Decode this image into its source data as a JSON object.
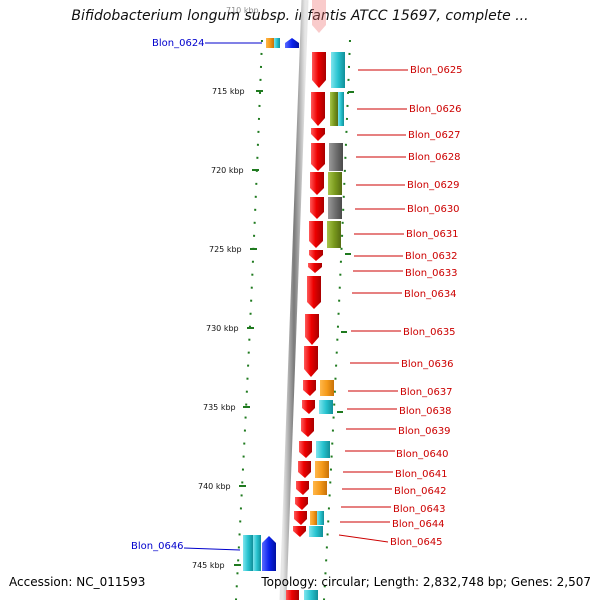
{
  "title": "Bifidobacterium longum subsp. infantis ATCC 15697, complete ...",
  "top_cut_label": "710 kbp",
  "footer": {
    "accession": "Accession: NC_011593",
    "summary": "Topology: circular; Length: 2,832,748 bp; Genes: 2,507"
  },
  "colors": {
    "forward_gene": "#ee0000",
    "orange_gene": "#f59a1a",
    "cyan_gene": "#27c3cf",
    "olive_gene": "#7a9a1e",
    "gray_gene": "#707070",
    "blue_gene": "#0a22ee",
    "label_red": "#cc0000",
    "label_blue": "#0000cc",
    "tick_green": "#1f7a1f"
  },
  "ticks": [
    {
      "label": "715 kbp"
    },
    {
      "label": "720 kbp"
    },
    {
      "label": "725 kbp"
    },
    {
      "label": "730 kbp"
    },
    {
      "label": "735 kbp"
    },
    {
      "label": "740 kbp"
    },
    {
      "label": "745 kbp"
    }
  ],
  "gene_labels": {
    "g0624": "Blon_0624",
    "g0625": "Blon_0625",
    "g0626": "Blon_0626",
    "g0627": "Blon_0627",
    "g0628": "Blon_0628",
    "g0629": "Blon_0629",
    "g0630": "Blon_0630",
    "g0631": "Blon_0631",
    "g0632": "Blon_0632",
    "g0633": "Blon_0633",
    "g0634": "Blon_0634",
    "g0635": "Blon_0635",
    "g0636": "Blon_0636",
    "g0637": "Blon_0637",
    "g0638": "Blon_0638",
    "g0639": "Blon_0639",
    "g0640": "Blon_0640",
    "g0641": "Blon_0641",
    "g0642": "Blon_0642",
    "g0643": "Blon_0643",
    "g0644": "Blon_0644",
    "g0645": "Blon_0645",
    "g0646": "Blon_0646"
  }
}
